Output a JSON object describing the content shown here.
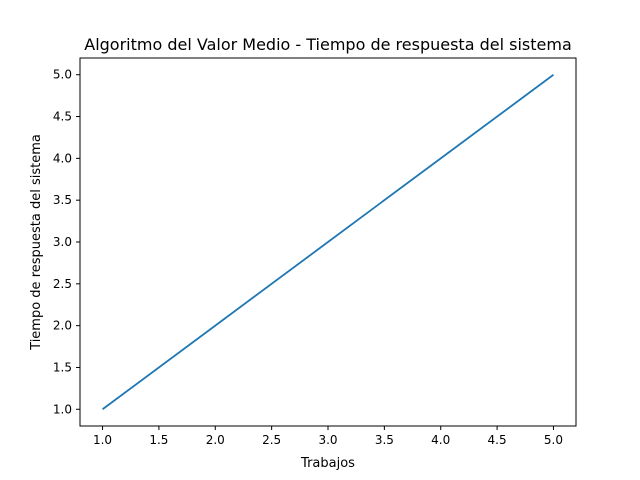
{
  "chart_data": {
    "type": "line",
    "title": "Algoritmo del Valor Medio - Tiempo de respuesta del sistema",
    "xlabel": "Trabajos",
    "ylabel": "Tiempo de respuesta del sistema",
    "xlim": [
      0.8,
      5.2
    ],
    "ylim": [
      0.8,
      5.2
    ],
    "xticks": [
      1.0,
      1.5,
      2.0,
      2.5,
      3.0,
      3.5,
      4.0,
      4.5,
      5.0
    ],
    "yticks": [
      1.0,
      1.5,
      2.0,
      2.5,
      3.0,
      3.5,
      4.0,
      4.5,
      5.0
    ],
    "xtick_labels": [
      "1.0",
      "1.5",
      "2.0",
      "2.5",
      "3.0",
      "3.5",
      "4.0",
      "4.5",
      "5.0"
    ],
    "ytick_labels": [
      "1.0",
      "1.5",
      "2.0",
      "2.5",
      "3.0",
      "3.5",
      "4.0",
      "4.5",
      "5.0"
    ],
    "grid": false,
    "series": [
      {
        "color": "#1f77b4",
        "x": [
          1,
          2,
          3,
          4,
          5
        ],
        "y": [
          1.0,
          2.0,
          3.0,
          4.0,
          5.0
        ]
      }
    ]
  }
}
